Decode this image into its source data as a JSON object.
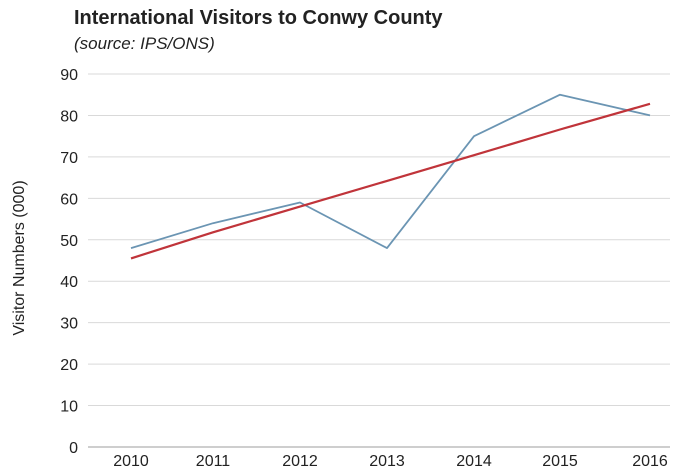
{
  "chart_data": {
    "type": "line",
    "title": "International Visitors to Conwy County",
    "subtitle": "(source: IPS/ONS)",
    "xlabel": "",
    "ylabel": "Visitor Numbers (000)",
    "x": [
      "2010",
      "2011",
      "2012",
      "2013",
      "2014",
      "2015",
      "2016"
    ],
    "ylim": [
      0,
      90
    ],
    "yticks": [
      0,
      10,
      20,
      30,
      40,
      50,
      60,
      70,
      80,
      90
    ],
    "grid": true,
    "series": [
      {
        "values": [
          48,
          54,
          59,
          48,
          75,
          85,
          80
        ],
        "color": "#6b95b3"
      },
      {
        "values": [
          45.5,
          51.8,
          58.0,
          64.2,
          70.4,
          76.6,
          82.8
        ],
        "color": "#c0343a"
      }
    ]
  }
}
